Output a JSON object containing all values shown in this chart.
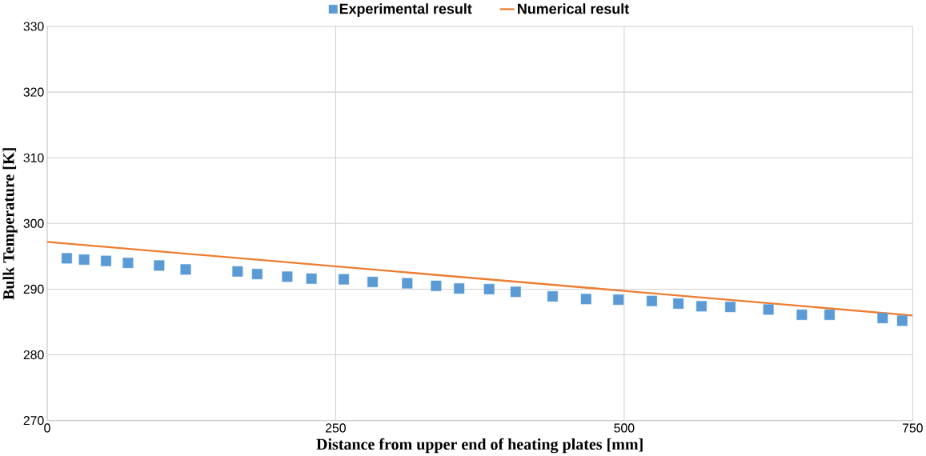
{
  "chart_data": {
    "type": "scatter",
    "xlabel": "Distance from upper end of heating plates [mm]",
    "ylabel": "Bulk Temperature [K]",
    "xlim": [
      0,
      750
    ],
    "xticks": [
      0,
      250,
      500,
      750
    ],
    "ylim": [
      270,
      330
    ],
    "yticks": [
      270,
      280,
      290,
      300,
      310,
      320,
      330
    ],
    "grid": true,
    "legend": "top",
    "series": [
      {
        "name": "Experimental result",
        "marker": "square",
        "color": "#5b9bd5",
        "x": [
          17,
          32,
          51,
          70,
          97,
          120,
          165,
          182,
          208,
          229,
          257,
          282,
          312,
          337,
          357,
          383,
          406,
          438,
          467,
          495,
          524,
          547,
          567,
          592,
          625,
          654,
          678,
          724,
          741
        ],
        "values": [
          294.7,
          294.5,
          294.3,
          294.0,
          293.6,
          293.0,
          292.7,
          292.3,
          291.9,
          291.6,
          291.5,
          291.1,
          290.9,
          290.5,
          290.1,
          290.0,
          289.6,
          288.9,
          288.5,
          288.4,
          288.2,
          287.8,
          287.4,
          287.3,
          286.9,
          286.1,
          286.1,
          285.6,
          285.2
        ]
      },
      {
        "name": "Numerical result",
        "type": "line",
        "marker": "none",
        "color": "#ed7d31",
        "x": [
          0,
          750
        ],
        "values": [
          297.2,
          286.0
        ]
      }
    ]
  }
}
